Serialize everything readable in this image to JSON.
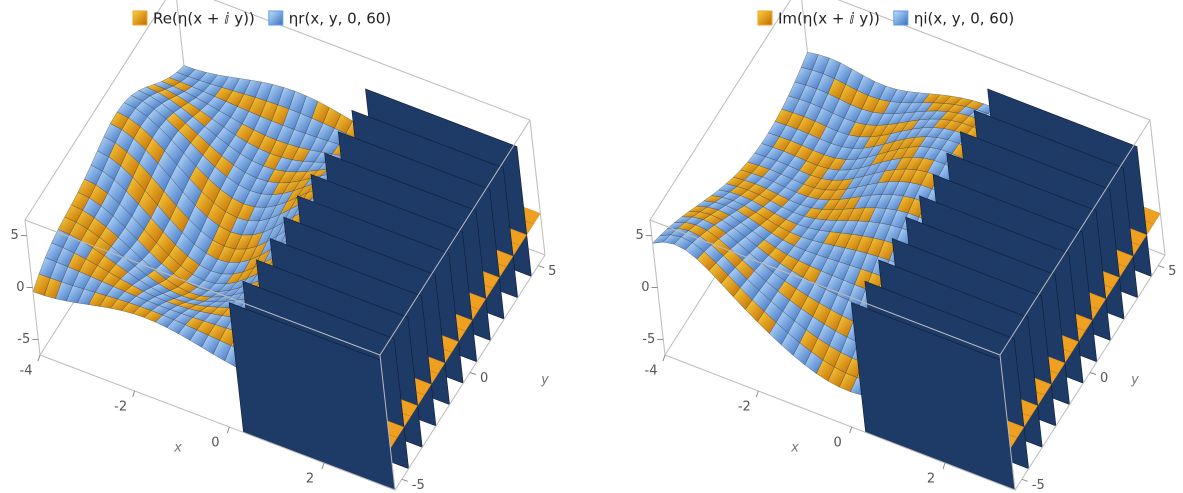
{
  "chart_data": [
    {
      "type": "surface3d",
      "series": [
        {
          "name": "Re(η(x + ⅈ y))",
          "color": "#f5a020"
        },
        {
          "name": "ηr(x, y, 0, 60)",
          "color": "#5b9ae8"
        }
      ],
      "x_label": "x",
      "y_label": "y",
      "xlim": [
        -4,
        3.5
      ],
      "ylim": [
        -5.5,
        5.5
      ],
      "zlim": [
        -6.5,
        6.5
      ],
      "xticks": [
        -4,
        -2,
        0,
        2
      ],
      "yticks": [
        -5,
        0,
        5
      ],
      "zticks": [
        -5,
        0,
        5
      ]
    },
    {
      "type": "surface3d",
      "series": [
        {
          "name": "Im(η(x + ⅈ y))",
          "color": "#f5a020"
        },
        {
          "name": "ηi(x, y, 0, 60)",
          "color": "#5b9ae8"
        }
      ],
      "x_label": "x",
      "y_label": "y",
      "xlim": [
        -4,
        3.5
      ],
      "ylim": [
        -5.5,
        5.5
      ],
      "zlim": [
        -6.5,
        6.5
      ],
      "xticks": [
        -4,
        -2,
        0,
        2
      ],
      "yticks": [
        -5,
        0,
        5
      ],
      "zticks": [
        -5,
        0,
        5
      ]
    }
  ]
}
